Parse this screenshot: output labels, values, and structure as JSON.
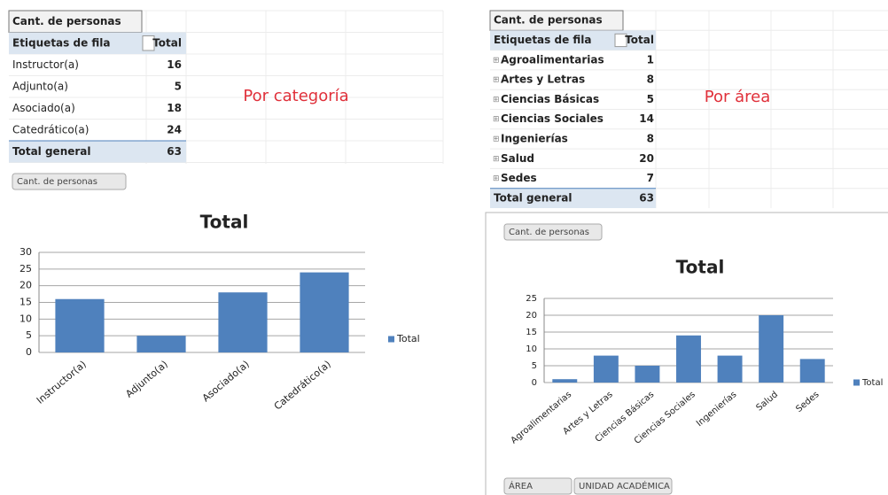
{
  "left_table": {
    "header": "Cant. de personas",
    "row_label": "Etiquetas de fila",
    "total_label": "Total",
    "rows": [
      [
        "Instructor(a)",
        16
      ],
      [
        "Adjunto(a)",
        5
      ],
      [
        "Asociado(a)",
        18
      ],
      [
        "Catedrático(a)",
        24
      ]
    ],
    "grand_total": [
      "Total general",
      63
    ]
  },
  "left_note": "Por categoría",
  "left_button": "Cant. de personas",
  "right_table": {
    "header": "Cant. de personas",
    "row_label": "Etiquetas de fila",
    "total_label": "Total",
    "rows": [
      [
        "Agroalimentarias",
        1
      ],
      [
        "Artes y Letras",
        8
      ],
      [
        "Ciencias Básicas",
        5
      ],
      [
        "Ciencias Sociales",
        14
      ],
      [
        "Ingenierías",
        8
      ],
      [
        "Salud",
        20
      ],
      [
        "Sedes",
        7
      ]
    ],
    "grand_total": [
      "Total general",
      63
    ]
  },
  "right_note": "Por área",
  "right_button": "Cant. de personas",
  "filter_buttons": [
    "ÁREA",
    "UNIDAD ACADÉMICA"
  ],
  "chart_data": [
    {
      "type": "bar",
      "title": "Total",
      "categories": [
        "Instructor(a)",
        "Adjunto(a)",
        "Asociado(a)",
        "Catedrático(a)"
      ],
      "series": [
        {
          "name": "Total",
          "color": "#4f81bd",
          "values": [
            16,
            5,
            18,
            24
          ]
        }
      ],
      "ylim": [
        0,
        30
      ],
      "yticks": [
        0,
        5,
        10,
        15,
        20,
        25,
        30
      ],
      "grid": true,
      "legend": "right"
    },
    {
      "type": "bar",
      "title": "Total",
      "categories": [
        "Agroalimentarias",
        "Artes y Letras",
        "Ciencias Básicas",
        "Ciencias Sociales",
        "Ingenierías",
        "Salud",
        "Sedes"
      ],
      "series": [
        {
          "name": "Total",
          "color": "#4f81bd",
          "values": [
            1,
            8,
            5,
            14,
            8,
            20,
            7
          ]
        }
      ],
      "ylim": [
        0,
        25
      ],
      "yticks": [
        0,
        5,
        10,
        15,
        20,
        25
      ],
      "grid": true,
      "legend": "right"
    }
  ]
}
